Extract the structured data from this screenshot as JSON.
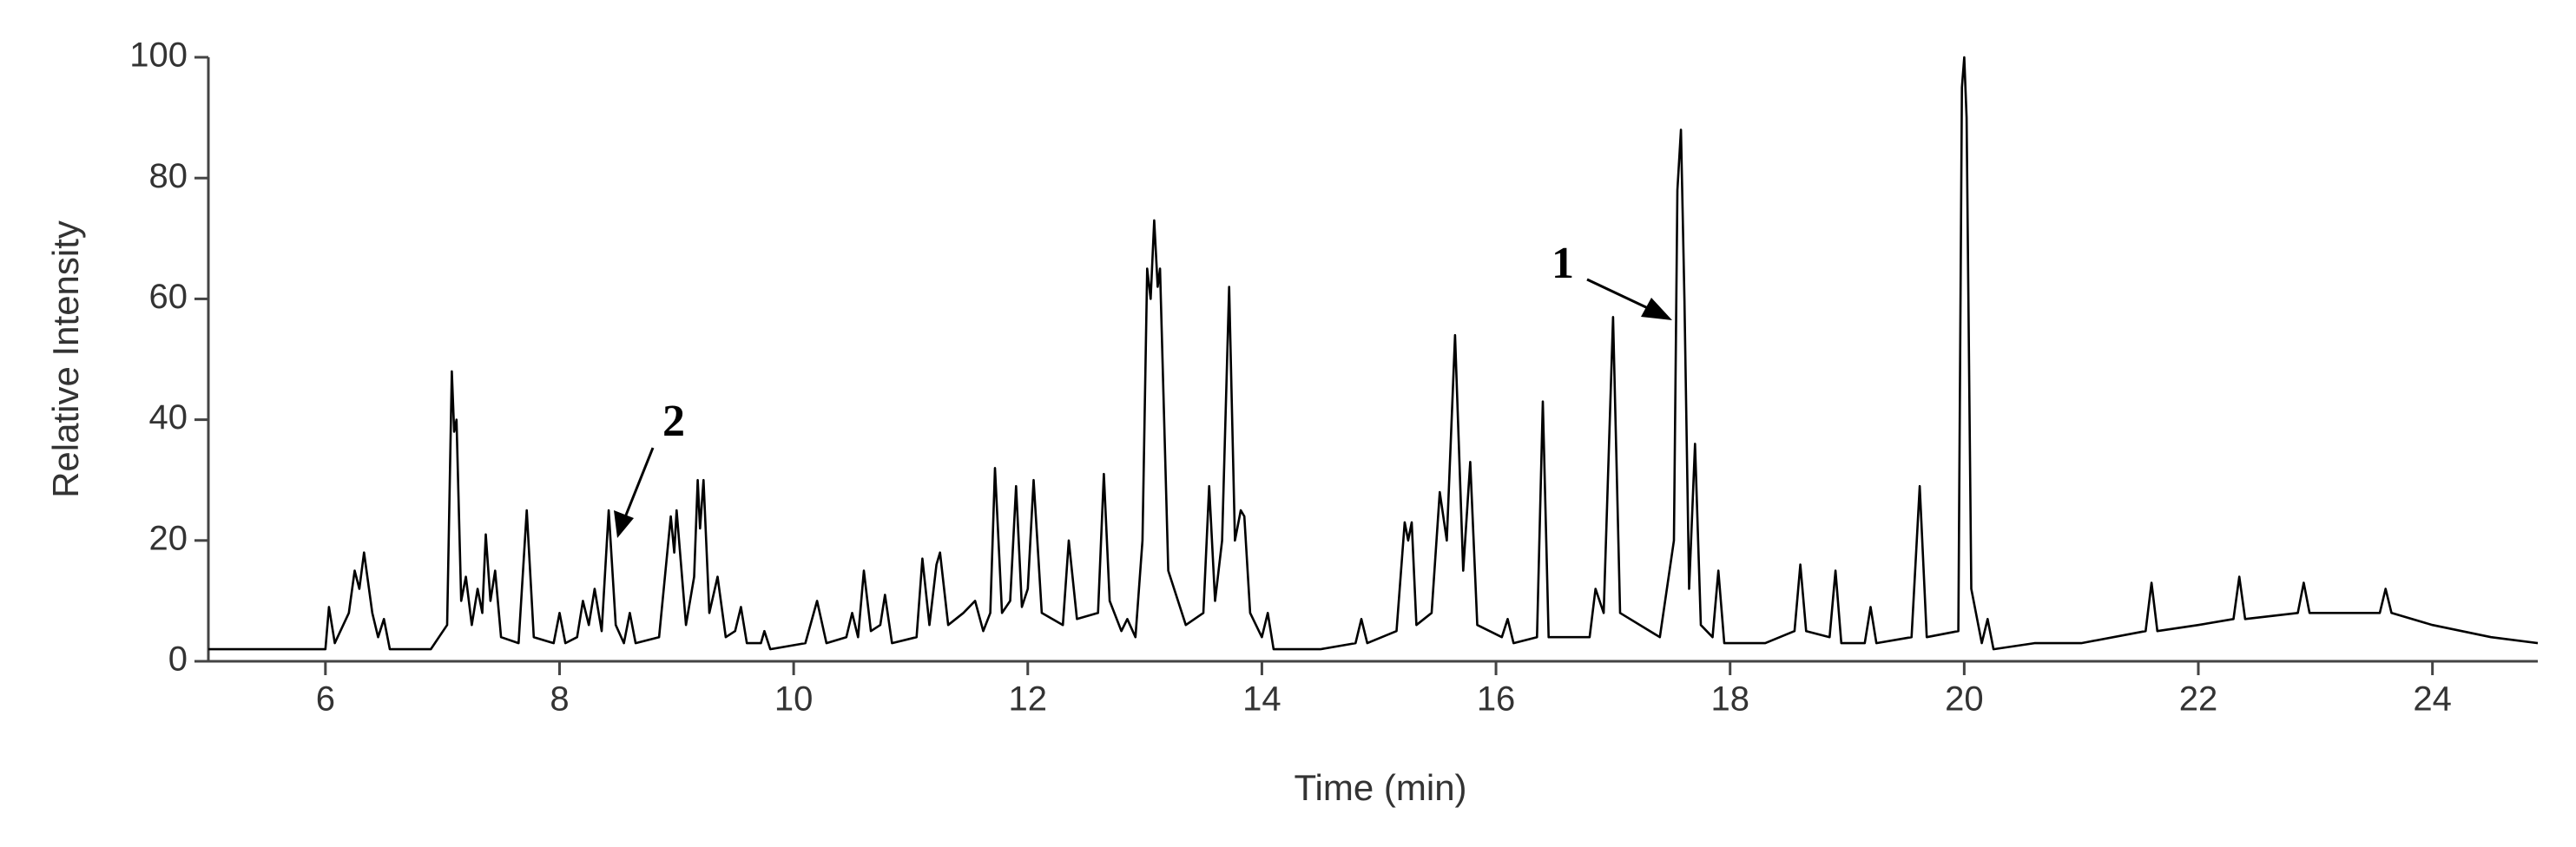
{
  "chart_data": {
    "type": "line",
    "xlabel": "Time (min)",
    "ylabel": "Relative Intensity",
    "color": "#000000",
    "xlim": [
      5,
      24.9
    ],
    "ylim": [
      0,
      100
    ],
    "xticks": [
      6,
      8,
      10,
      12,
      14,
      16,
      18,
      20,
      22,
      24
    ],
    "yticks": [
      0,
      20,
      40,
      60,
      80,
      100
    ],
    "annotations": [
      "1",
      "2"
    ],
    "x": [
      5.0,
      5.5,
      6.0,
      6.03,
      6.08,
      6.2,
      6.25,
      6.29,
      6.33,
      6.4,
      6.45,
      6.5,
      6.55,
      6.9,
      7.04,
      7.08,
      7.1,
      7.12,
      7.16,
      7.2,
      7.25,
      7.3,
      7.34,
      7.37,
      7.41,
      7.45,
      7.5,
      7.65,
      7.72,
      7.78,
      7.95,
      8.0,
      8.05,
      8.15,
      8.2,
      8.25,
      8.3,
      8.36,
      8.42,
      8.48,
      8.55,
      8.6,
      8.65,
      8.85,
      8.95,
      8.98,
      9.0,
      9.08,
      9.15,
      9.18,
      9.2,
      9.23,
      9.28,
      9.35,
      9.42,
      9.5,
      9.55,
      9.6,
      9.72,
      9.75,
      9.8,
      10.1,
      10.2,
      10.28,
      10.45,
      10.5,
      10.55,
      10.6,
      10.66,
      10.74,
      10.78,
      10.84,
      11.05,
      11.1,
      11.16,
      11.22,
      11.25,
      11.32,
      11.45,
      11.55,
      11.62,
      11.68,
      11.72,
      11.78,
      11.85,
      11.9,
      11.95,
      12.0,
      12.05,
      12.12,
      12.3,
      12.35,
      12.42,
      12.6,
      12.65,
      12.7,
      12.8,
      12.85,
      12.92,
      12.98,
      13.02,
      13.05,
      13.08,
      13.11,
      13.13,
      13.2,
      13.35,
      13.5,
      13.55,
      13.6,
      13.66,
      13.72,
      13.77,
      13.82,
      13.85,
      13.9,
      14.0,
      14.05,
      14.1,
      14.5,
      14.8,
      14.85,
      14.9,
      15.15,
      15.22,
      15.25,
      15.28,
      15.32,
      15.45,
      15.52,
      15.58,
      15.65,
      15.72,
      15.78,
      15.84,
      16.05,
      16.1,
      16.15,
      16.35,
      16.4,
      16.45,
      16.8,
      16.85,
      16.92,
      17.0,
      17.06,
      17.4,
      17.52,
      17.55,
      17.58,
      17.61,
      17.65,
      17.7,
      17.75,
      17.85,
      17.9,
      17.95,
      18.3,
      18.55,
      18.6,
      18.65,
      18.85,
      18.9,
      18.95,
      19.15,
      19.2,
      19.25,
      19.55,
      19.62,
      19.68,
      19.95,
      19.98,
      20.0,
      20.02,
      20.06,
      20.15,
      20.2,
      20.25,
      20.6,
      21.0,
      21.55,
      21.6,
      21.65,
      22.0,
      22.3,
      22.35,
      22.4,
      22.85,
      22.9,
      22.95,
      23.3,
      23.55,
      23.6,
      23.65,
      24.0,
      24.5,
      24.9
    ],
    "values": [
      2,
      2,
      2,
      9,
      3,
      8,
      15,
      12,
      18,
      8,
      4,
      7,
      2,
      2,
      6,
      48,
      38,
      40,
      10,
      14,
      6,
      12,
      8,
      21,
      10,
      15,
      4,
      3,
      25,
      4,
      3,
      8,
      3,
      4,
      10,
      6,
      12,
      5,
      25,
      6,
      3,
      8,
      3,
      4,
      24,
      18,
      25,
      6,
      14,
      30,
      22,
      30,
      8,
      14,
      4,
      5,
      9,
      3,
      3,
      5,
      2,
      3,
      10,
      3,
      4,
      8,
      4,
      15,
      5,
      6,
      11,
      3,
      4,
      17,
      6,
      16,
      18,
      6,
      8,
      10,
      5,
      8,
      32,
      8,
      10,
      29,
      9,
      12,
      30,
      8,
      6,
      20,
      7,
      8,
      31,
      10,
      5,
      7,
      4,
      20,
      65,
      60,
      73,
      62,
      65,
      15,
      6,
      8,
      29,
      10,
      20,
      62,
      20,
      25,
      24,
      8,
      4,
      8,
      2,
      2,
      3,
      7,
      3,
      5,
      23,
      20,
      23,
      6,
      8,
      28,
      20,
      54,
      15,
      33,
      6,
      4,
      7,
      3,
      4,
      43,
      4,
      4,
      12,
      8,
      57,
      8,
      4,
      20,
      78,
      88,
      60,
      12,
      36,
      6,
      4,
      15,
      3,
      3,
      5,
      16,
      5,
      4,
      15,
      3,
      3,
      9,
      3,
      4,
      29,
      4,
      5,
      95,
      100,
      90,
      12,
      3,
      7,
      2,
      3,
      3,
      5,
      13,
      5,
      6,
      7,
      14,
      7,
      8,
      13,
      8,
      8,
      8,
      12,
      8,
      6,
      4,
      3
    ]
  }
}
